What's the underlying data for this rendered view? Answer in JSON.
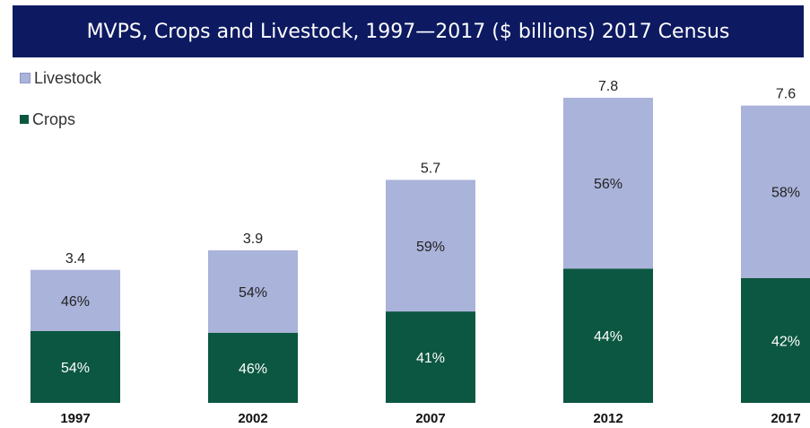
{
  "title": "MVPS, Crops and Livestock, 1997—2017 ($ billions) 2017 Census",
  "colors": {
    "title_bg": "#0d1a61",
    "crops": "#0c5741",
    "livestock": "#aab3da"
  },
  "chart_data": {
    "type": "bar",
    "stacked": true,
    "categories": [
      "1997",
      "2002",
      "2007",
      "2012",
      "2017"
    ],
    "totals": [
      3.4,
      3.9,
      5.7,
      7.8,
      7.6
    ],
    "series": [
      {
        "name": "Crops",
        "shares": [
          54,
          46,
          41,
          44,
          42
        ],
        "labels": [
          "54%",
          "46%",
          "41%",
          "44%",
          "42%"
        ]
      },
      {
        "name": "Livestock",
        "shares": [
          46,
          54,
          59,
          56,
          58
        ],
        "labels": [
          "46%",
          "54%",
          "59%",
          "56%",
          "58%"
        ]
      }
    ],
    "total_labels": [
      "3.4",
      "3.9",
      "5.7",
      "7.8",
      "7.6"
    ],
    "legend": [
      "Livestock",
      "Crops"
    ],
    "legend_position": "top-left",
    "grid": false
  }
}
